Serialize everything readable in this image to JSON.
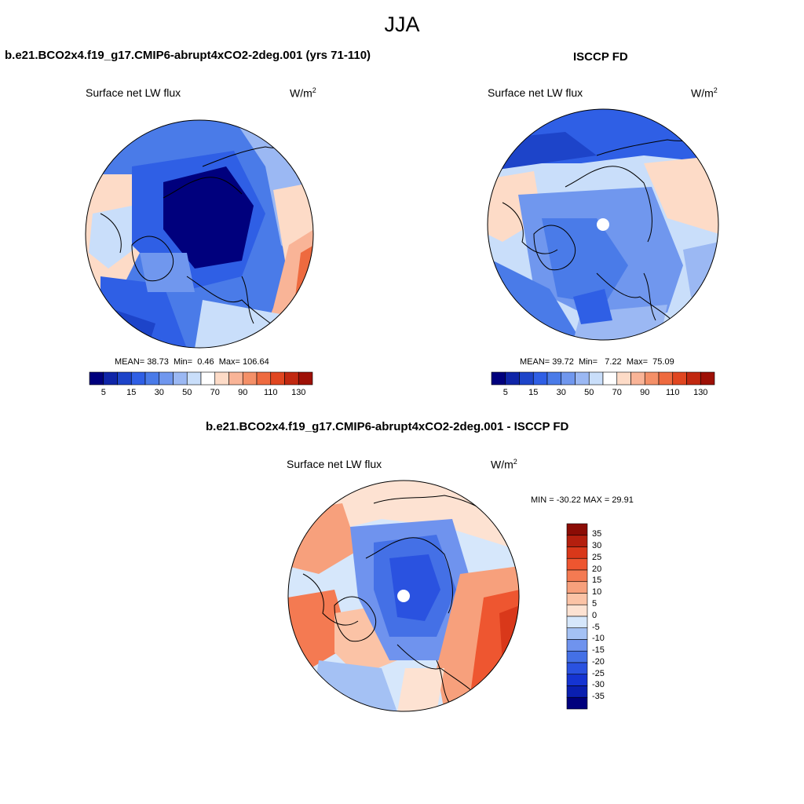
{
  "figure": {
    "season": "JJA"
  },
  "panels": [
    {
      "title": "b.e21.BCO2x4.f19_g17.CMIP6-abrupt4xCO2-2deg.001 (yrs 71-110)",
      "variable": "Surface net LW flux",
      "units": "W/m",
      "units_exp": "2",
      "mean_label": "MEAN=",
      "mean": "38.73",
      "min_label": "Min=",
      "min": "0.46",
      "max_label": "Max=",
      "max": "106.64",
      "colorbar_ticks": [
        "5",
        "15",
        "30",
        "50",
        "70",
        "90",
        "110",
        "130"
      ]
    },
    {
      "title": "ISCCP FD",
      "variable": "Surface net LW flux",
      "units": "W/m",
      "units_exp": "2",
      "mean_label": "MEAN=",
      "mean": "39.72",
      "min_label": "Min=",
      "min": "7.22",
      "max_label": "Max=",
      "max": "75.09",
      "colorbar_ticks": [
        "5",
        "15",
        "30",
        "50",
        "70",
        "90",
        "110",
        "130"
      ]
    },
    {
      "title": "b.e21.BCO2x4.f19_g17.CMIP6-abrupt4xCO2-2deg.001 - ISCCP FD",
      "variable": "Surface net LW flux",
      "units": "W/m",
      "units_exp": "2",
      "minmax_text": "MIN = -30.22 MAX =  29.91",
      "colorbar_ticks": [
        "35",
        "30",
        "25",
        "20",
        "15",
        "10",
        "5",
        "0",
        "-5",
        "-10",
        "-15",
        "-20",
        "-25",
        "-30",
        "-35"
      ]
    }
  ],
  "chart_data": [
    {
      "type": "heatmap",
      "projection": "north-polar-stereographic",
      "title": "b.e21.BCO2x4.f19_g17.CMIP6-abrupt4xCO2-2deg.001 (yrs 71-110)",
      "variable": "Surface net LW flux",
      "units": "W/m^2",
      "mean": 38.73,
      "min": 0.46,
      "max": 106.64,
      "levels": [
        5,
        10,
        15,
        20,
        30,
        40,
        50,
        60,
        70,
        80,
        90,
        100,
        110,
        120,
        130
      ],
      "colors": [
        "#00007d",
        "#0f25a8",
        "#1d44c9",
        "#2f5fe5",
        "#4a7be8",
        "#7097ee",
        "#9bb8f3",
        "#c9defa",
        "#ffffff",
        "#fddbc7",
        "#f9b497",
        "#f49068",
        "#ee6a3f",
        "#e04620",
        "#c12810",
        "#9e1006"
      ]
    },
    {
      "type": "heatmap",
      "projection": "north-polar-stereographic",
      "title": "ISCCP FD",
      "variable": "Surface net LW flux",
      "units": "W/m^2",
      "mean": 39.72,
      "min": 7.22,
      "max": 75.09,
      "levels": [
        5,
        10,
        15,
        20,
        30,
        40,
        50,
        60,
        70,
        80,
        90,
        100,
        110,
        120,
        130
      ],
      "colors": [
        "#00007d",
        "#0f25a8",
        "#1d44c9",
        "#2f5fe5",
        "#4a7be8",
        "#7097ee",
        "#9bb8f3",
        "#c9defa",
        "#ffffff",
        "#fddbc7",
        "#f9b497",
        "#f49068",
        "#ee6a3f",
        "#e04620",
        "#c12810",
        "#9e1006"
      ]
    },
    {
      "type": "heatmap",
      "projection": "north-polar-stereographic",
      "title": "b.e21.BCO2x4.f19_g17.CMIP6-abrupt4xCO2-2deg.001 - ISCCP FD",
      "variable": "Surface net LW flux",
      "units": "W/m^2",
      "min": -30.22,
      "max": 29.91,
      "levels": [
        -35,
        -30,
        -25,
        -20,
        -15,
        -10,
        -5,
        0,
        5,
        10,
        15,
        20,
        25,
        30,
        35
      ],
      "colors": [
        "#00007d",
        "#0a1fb0",
        "#1534d2",
        "#2a52e0",
        "#4470e6",
        "#6f93ee",
        "#a4c1f4",
        "#d6e7fb",
        "#fde2d2",
        "#fbc3a6",
        "#f7a07c",
        "#f47a52",
        "#ee5630",
        "#d9381a",
        "#b41f0e",
        "#8b0c05"
      ]
    }
  ]
}
